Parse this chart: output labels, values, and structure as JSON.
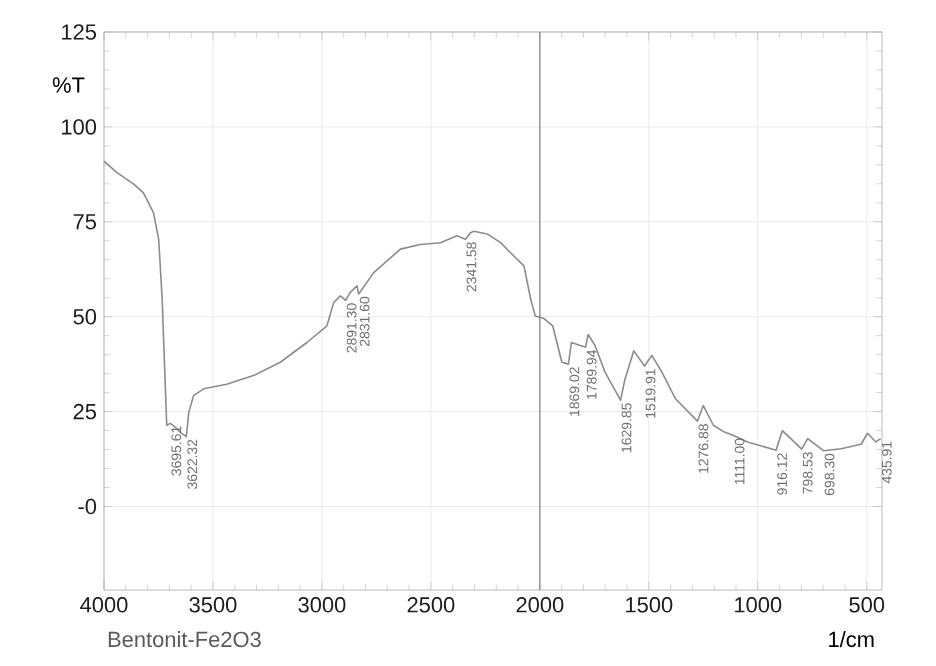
{
  "chart_data": {
    "type": "line",
    "xlabel": "1/cm",
    "ylabel": "%T",
    "xlim": [
      4000,
      430
    ],
    "ylim": [
      -22,
      125
    ],
    "xticks": [
      4000,
      3500,
      3000,
      2500,
      2000,
      1500,
      1000,
      500
    ],
    "yticks": [
      {
        "value": 0,
        "label": "-0"
      },
      25,
      50,
      75,
      100,
      125
    ],
    "grid": true,
    "ref_lines": [
      {
        "axis": "x",
        "value": 2000,
        "color": "#808080"
      }
    ],
    "series": [
      {
        "color": "#8c8c8c",
        "x": [
          4000,
          3942,
          3865,
          3819,
          3773,
          3749,
          3733,
          3721,
          3712,
          3695.61,
          3675,
          3651,
          3622.32,
          3611,
          3589,
          3543,
          3437,
          3314,
          3191,
          3069,
          2977,
          2946,
          2915,
          2891.3,
          2870,
          2839,
          2831.6,
          2762,
          2640,
          2548,
          2456,
          2380,
          2341.58,
          2318,
          2302,
          2242,
          2180,
          2119,
          2073,
          2042,
          2021,
          1981,
          1941,
          1899,
          1869.02,
          1855,
          1815,
          1789.94,
          1778,
          1747,
          1701,
          1629.85,
          1609,
          1569,
          1519.91,
          1486,
          1440,
          1378,
          1276.88,
          1250,
          1204,
          1153,
          1111,
          1047,
          916.12,
          887,
          798.53,
          771,
          698.3,
          618,
          526,
          496,
          459,
          435.91
        ],
        "values": [
          91,
          88,
          85,
          82.6,
          77.4,
          70.4,
          54.6,
          35.4,
          21.4,
          21.9,
          21,
          19.6,
          18.4,
          24.8,
          29.2,
          31,
          32.2,
          34.5,
          38,
          43.2,
          47.6,
          53.7,
          55.5,
          54.3,
          56.4,
          58.1,
          56,
          61.6,
          67.8,
          69,
          69.5,
          71.3,
          70.4,
          72.1,
          72.5,
          71.8,
          69.5,
          66,
          63.4,
          54.6,
          50.2,
          49.5,
          47.6,
          38,
          37.5,
          43.2,
          42.4,
          42,
          45.3,
          42.4,
          35.4,
          28,
          33.6,
          41,
          37,
          39.8,
          35.4,
          28.4,
          22.5,
          26.6,
          21.4,
          19.6,
          18.7,
          17,
          14.8,
          20,
          15.1,
          17.9,
          14.7,
          15.2,
          16.4,
          19.3,
          17,
          17.9
        ]
      }
    ],
    "annotations": [
      {
        "text": "3695.61",
        "x": 3695.61,
        "y": 21.9
      },
      {
        "text": "3622.32",
        "x": 3622.32,
        "y": 18.4
      },
      {
        "text": "2891.30",
        "x": 2891.3,
        "y": 54.3
      },
      {
        "text": "2831.60",
        "x": 2831.6,
        "y": 56
      },
      {
        "text": "2341.58",
        "x": 2341.58,
        "y": 70.4
      },
      {
        "text": "1869.02",
        "x": 1869.02,
        "y": 37.5
      },
      {
        "text": "1789.94",
        "x": 1789.94,
        "y": 42
      },
      {
        "text": "1629.85",
        "x": 1629.85,
        "y": 28
      },
      {
        "text": "1519.91",
        "x": 1519.91,
        "y": 37
      },
      {
        "text": "1276.88",
        "x": 1276.88,
        "y": 22.5
      },
      {
        "text": "1111.00",
        "x": 1111,
        "y": 18.7
      },
      {
        "text": "916.12",
        "x": 916.12,
        "y": 14.8
      },
      {
        "text": "798.53",
        "x": 798.53,
        "y": 15.1
      },
      {
        "text": "698.30",
        "x": 698.3,
        "y": 14.7
      },
      {
        "text": "435.91",
        "x": 435.91,
        "y": 17.9
      },
      "Bentonit-Fe2O3"
    ]
  }
}
